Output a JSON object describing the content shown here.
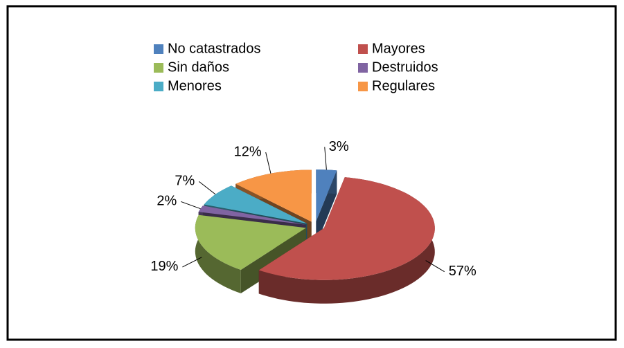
{
  "chart_data": {
    "type": "pie3d",
    "categories": [
      "No catastrados",
      "Mayores",
      "Sin daños",
      "Destruidos",
      "Menores",
      "Regulares"
    ],
    "values": [
      3,
      57,
      19,
      2,
      7,
      12
    ],
    "value_labels": [
      "3%",
      "57%",
      "19%",
      "2%",
      "7%",
      "12%"
    ],
    "colors": [
      "#4f81bd",
      "#c0504d",
      "#9bbb59",
      "#8064a2",
      "#4bacc6",
      "#f79646"
    ],
    "legend": "top"
  }
}
